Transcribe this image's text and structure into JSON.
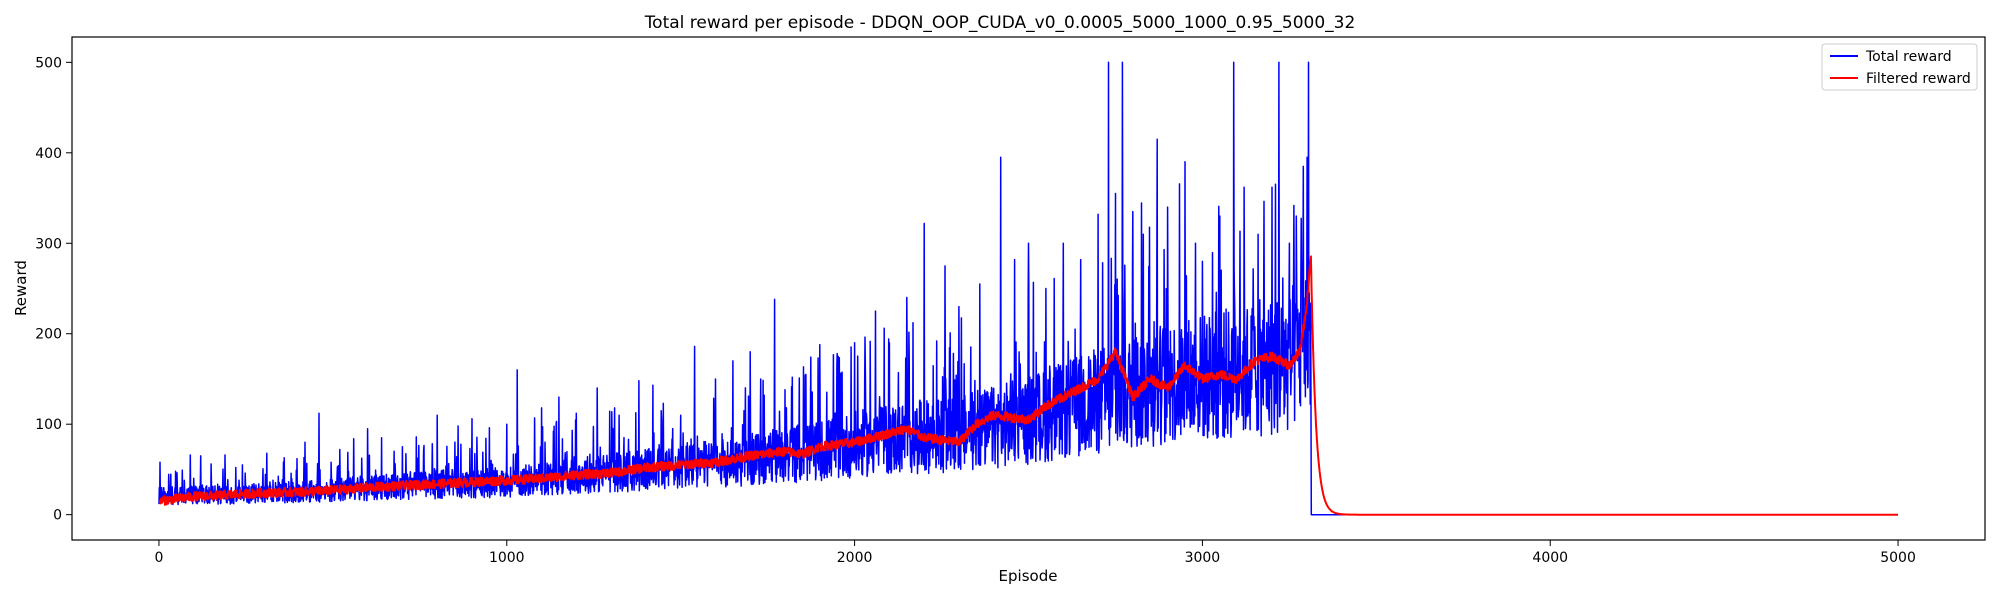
{
  "chart_data": {
    "type": "line",
    "title": "Total reward per episode - DDQN_OOP_CUDA_v0_0.0005_5000_1000_0.95_5000_32",
    "xlabel": "Episode",
    "ylabel": "Reward",
    "xlim": [
      -250,
      5250
    ],
    "ylim": [
      -28,
      528
    ],
    "x_ticks": [
      0,
      1000,
      2000,
      3000,
      4000,
      5000
    ],
    "y_ticks": [
      0,
      100,
      200,
      300,
      400,
      500
    ],
    "grid": false,
    "legend_position": "top-right",
    "episodes": 5000,
    "active_until_episode": 3312,
    "series": [
      {
        "name": "Total reward",
        "color": "#0000ff",
        "baseline_x": [
          0,
          200,
          500,
          800,
          1000,
          1200,
          1500,
          1700,
          1900,
          2100,
          2300,
          2500,
          2700,
          2900,
          3100,
          3250,
          3300
        ],
        "baseline_y": [
          20,
          21,
          26,
          32,
          34,
          42,
          50,
          58,
          68,
          80,
          85,
          100,
          120,
          140,
          150,
          160,
          190
        ],
        "noise_spread": 0.9,
        "peaks": [
          {
            "x": 3,
            "y": 58
          },
          {
            "x": 48,
            "y": 48
          },
          {
            "x": 90,
            "y": 66
          },
          {
            "x": 120,
            "y": 65
          },
          {
            "x": 150,
            "y": 56
          },
          {
            "x": 190,
            "y": 66
          },
          {
            "x": 240,
            "y": 55
          },
          {
            "x": 310,
            "y": 68
          },
          {
            "x": 360,
            "y": 63
          },
          {
            "x": 420,
            "y": 80
          },
          {
            "x": 460,
            "y": 112
          },
          {
            "x": 520,
            "y": 72
          },
          {
            "x": 560,
            "y": 84
          },
          {
            "x": 600,
            "y": 95
          },
          {
            "x": 640,
            "y": 85
          },
          {
            "x": 700,
            "y": 75
          },
          {
            "x": 740,
            "y": 86
          },
          {
            "x": 800,
            "y": 110
          },
          {
            "x": 860,
            "y": 98
          },
          {
            "x": 900,
            "y": 106
          },
          {
            "x": 950,
            "y": 96
          },
          {
            "x": 1000,
            "y": 100
          },
          {
            "x": 1030,
            "y": 160
          },
          {
            "x": 1080,
            "y": 107
          },
          {
            "x": 1100,
            "y": 118
          },
          {
            "x": 1150,
            "y": 130
          },
          {
            "x": 1200,
            "y": 112
          },
          {
            "x": 1260,
            "y": 140
          },
          {
            "x": 1310,
            "y": 118
          },
          {
            "x": 1380,
            "y": 148
          },
          {
            "x": 1420,
            "y": 143
          },
          {
            "x": 1450,
            "y": 123
          },
          {
            "x": 1500,
            "y": 110
          },
          {
            "x": 1540,
            "y": 186
          },
          {
            "x": 1600,
            "y": 150
          },
          {
            "x": 1650,
            "y": 170
          },
          {
            "x": 1700,
            "y": 180
          },
          {
            "x": 1730,
            "y": 150
          },
          {
            "x": 1770,
            "y": 238
          },
          {
            "x": 1800,
            "y": 138
          },
          {
            "x": 1860,
            "y": 155
          },
          {
            "x": 1900,
            "y": 188
          },
          {
            "x": 1950,
            "y": 178
          },
          {
            "x": 2000,
            "y": 190
          },
          {
            "x": 2060,
            "y": 225
          },
          {
            "x": 2100,
            "y": 190
          },
          {
            "x": 2150,
            "y": 240
          },
          {
            "x": 2200,
            "y": 322
          },
          {
            "x": 2260,
            "y": 275
          },
          {
            "x": 2300,
            "y": 230
          },
          {
            "x": 2360,
            "y": 255
          },
          {
            "x": 2420,
            "y": 395
          },
          {
            "x": 2460,
            "y": 282
          },
          {
            "x": 2500,
            "y": 300
          },
          {
            "x": 2550,
            "y": 250
          },
          {
            "x": 2600,
            "y": 300
          },
          {
            "x": 2650,
            "y": 282
          },
          {
            "x": 2700,
            "y": 332
          },
          {
            "x": 2730,
            "y": 500
          },
          {
            "x": 2750,
            "y": 355
          },
          {
            "x": 2770,
            "y": 500
          },
          {
            "x": 2800,
            "y": 335
          },
          {
            "x": 2830,
            "y": 310
          },
          {
            "x": 2870,
            "y": 415
          },
          {
            "x": 2900,
            "y": 340
          },
          {
            "x": 2950,
            "y": 390
          },
          {
            "x": 2980,
            "y": 300
          },
          {
            "x": 3000,
            "y": 280
          },
          {
            "x": 3050,
            "y": 330
          },
          {
            "x": 3090,
            "y": 500
          },
          {
            "x": 3120,
            "y": 362
          },
          {
            "x": 3160,
            "y": 310
          },
          {
            "x": 3200,
            "y": 362
          },
          {
            "x": 3220,
            "y": 500
          },
          {
            "x": 3250,
            "y": 300
          },
          {
            "x": 3270,
            "y": 330
          },
          {
            "x": 3290,
            "y": 385
          },
          {
            "x": 3305,
            "y": 500
          }
        ],
        "after_active_value": 0
      },
      {
        "name": "Filtered reward",
        "color": "#ff0000",
        "x": [
          0,
          100,
          200,
          300,
          400,
          500,
          600,
          700,
          800,
          900,
          1000,
          1100,
          1200,
          1300,
          1400,
          1500,
          1600,
          1700,
          1800,
          1850,
          1900,
          2000,
          2100,
          2150,
          2200,
          2300,
          2350,
          2400,
          2500,
          2550,
          2600,
          2650,
          2700,
          2750,
          2800,
          2850,
          2900,
          2950,
          3000,
          3050,
          3100,
          3150,
          3200,
          3250,
          3280,
          3300,
          3312
        ],
        "y": [
          15,
          20,
          22,
          24,
          25,
          27,
          30,
          32,
          34,
          36,
          38,
          40,
          44,
          46,
          52,
          55,
          58,
          65,
          70,
          67,
          75,
          80,
          90,
          95,
          85,
          80,
          100,
          110,
          105,
          120,
          130,
          140,
          150,
          180,
          130,
          150,
          140,
          165,
          150,
          155,
          150,
          170,
          175,
          165,
          180,
          230,
          285
        ],
        "decay_tau": 14,
        "end_value": 0
      }
    ]
  }
}
